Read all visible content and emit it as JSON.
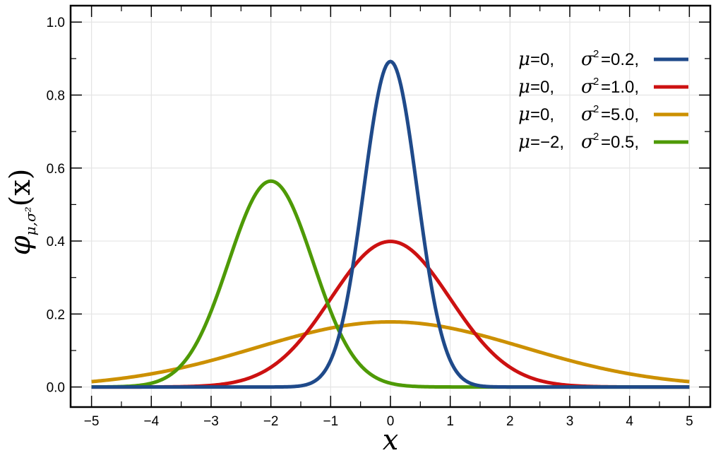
{
  "chart_data": {
    "type": "line",
    "function": "normal probability density",
    "xlabel": "x",
    "ylabel": {
      "symbol": "φ",
      "subscript": "μ,σ²",
      "argument": "(x)"
    },
    "xlim": [
      -5.35,
      5.35
    ],
    "ylim": [
      -0.055,
      1.045
    ],
    "x_ticks": [
      -5,
      -4,
      -3,
      -2,
      -1,
      0,
      1,
      2,
      3,
      4,
      5
    ],
    "x_tick_labels": [
      "−5",
      "−4",
      "−3",
      "−2",
      "−1",
      "0",
      "1",
      "2",
      "3",
      "4",
      "5"
    ],
    "y_ticks": [
      0.0,
      0.2,
      0.4,
      0.6,
      0.8,
      1.0
    ],
    "y_tick_labels": [
      "0.0",
      "0.2",
      "0.4",
      "0.6",
      "0.8",
      "1.0"
    ],
    "grid": true,
    "legend_position": "top-right",
    "x_range": [
      -5,
      5
    ],
    "series": [
      {
        "name": "μ=0, σ²=0.2,",
        "mu": 0,
        "sigma2": 0.2,
        "color": "#1f4a8a",
        "legend": {
          "mu_text": "=0,",
          "sigma_text": "=0.2,"
        }
      },
      {
        "name": "μ=0, σ²=1.0,",
        "mu": 0,
        "sigma2": 1.0,
        "color": "#cc1111",
        "legend": {
          "mu_text": "=0,",
          "sigma_text": "=1.0,"
        }
      },
      {
        "name": "μ=0, σ²=5.0,",
        "mu": 0,
        "sigma2": 5.0,
        "color": "#cc9000",
        "legend": {
          "mu_text": "=0,",
          "sigma_text": "=5.0,"
        }
      },
      {
        "name": "μ=−2, σ²=0.5,",
        "mu": -2,
        "sigma2": 0.5,
        "color": "#4e9a06",
        "legend": {
          "mu_text": "=−2,",
          "sigma_text": "=0.5,"
        }
      }
    ]
  }
}
